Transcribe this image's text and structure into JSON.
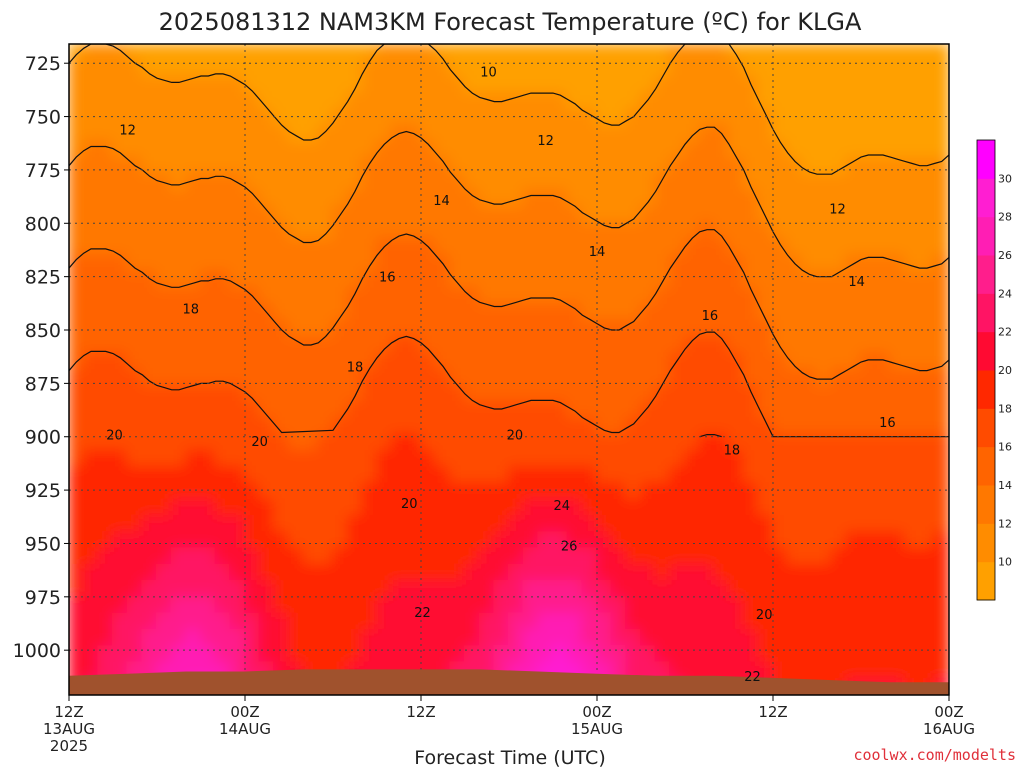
{
  "chart_data": {
    "type": "heatmap",
    "title": "2025081312 NAM3KM Forecast Temperature (ºC) for KLGA",
    "xlabel": "Forecast Time (UTC)",
    "ylabel": "",
    "x_ticks": [
      {
        "hour": 0,
        "line1": "12Z",
        "line2": "13AUG",
        "line3": "2025"
      },
      {
        "hour": 12,
        "line1": "00Z",
        "line2": "14AUG",
        "line3": ""
      },
      {
        "hour": 24,
        "line1": "12Z",
        "line2": "",
        "line3": ""
      },
      {
        "hour": 36,
        "line1": "00Z",
        "line2": "15AUG",
        "line3": ""
      },
      {
        "hour": 48,
        "line1": "12Z",
        "line2": "",
        "line3": ""
      },
      {
        "hour": 60,
        "line1": "00Z",
        "line2": "16AUG",
        "line3": ""
      }
    ],
    "xlim": [
      0,
      60
    ],
    "y_ticks": [
      725,
      750,
      775,
      800,
      825,
      850,
      875,
      900,
      925,
      950,
      975,
      1000
    ],
    "ylim": [
      716,
      1021
    ],
    "y_inverted": true,
    "grid": true,
    "colorbar": {
      "placement": "right",
      "levels": [
        10,
        12,
        14,
        16,
        18,
        20,
        22,
        24,
        26,
        28,
        30
      ],
      "colors": [
        "#ffa000",
        "#ff8c00",
        "#ff7800",
        "#ff6400",
        "#ff4b00",
        "#ff2800",
        "#ff0a32",
        "#ff1464",
        "#ff1e8c",
        "#ff1eb4",
        "#ff1ed2",
        "#ff00ff"
      ]
    },
    "contour_labels": [
      {
        "hour": 28.6,
        "pressure": 729,
        "value": "10"
      },
      {
        "hour": 4,
        "pressure": 756,
        "value": "12"
      },
      {
        "hour": 32.5,
        "pressure": 761,
        "value": "12"
      },
      {
        "hour": 52.4,
        "pressure": 793,
        "value": "12"
      },
      {
        "hour": 25.4,
        "pressure": 789,
        "value": "14"
      },
      {
        "hour": 36,
        "pressure": 813,
        "value": "14"
      },
      {
        "hour": 53.7,
        "pressure": 827,
        "value": "14"
      },
      {
        "hour": 8.3,
        "pressure": 840,
        "value": "18"
      },
      {
        "hour": 21.7,
        "pressure": 825,
        "value": "16"
      },
      {
        "hour": 43.7,
        "pressure": 843,
        "value": "16"
      },
      {
        "hour": 19.5,
        "pressure": 867,
        "value": "18"
      },
      {
        "hour": 45.2,
        "pressure": 906,
        "value": "18"
      },
      {
        "hour": 55.8,
        "pressure": 893,
        "value": "16"
      },
      {
        "hour": 3.1,
        "pressure": 899,
        "value": "20"
      },
      {
        "hour": 13,
        "pressure": 902,
        "value": "20"
      },
      {
        "hour": 30.4,
        "pressure": 899,
        "value": "20"
      },
      {
        "hour": 23.2,
        "pressure": 931,
        "value": "20"
      },
      {
        "hour": 33.6,
        "pressure": 932,
        "value": "24"
      },
      {
        "hour": 34.1,
        "pressure": 951,
        "value": "26"
      },
      {
        "hour": 24.1,
        "pressure": 982,
        "value": "22"
      },
      {
        "hour": 47.4,
        "pressure": 983,
        "value": "20"
      },
      {
        "hour": 46.6,
        "pressure": 1012,
        "value": "22"
      }
    ],
    "ground_pressure": [
      1012,
      1011,
      1010,
      1010,
      1009,
      1009,
      1009,
      1009,
      1010,
      1011,
      1012,
      1012,
      1013,
      1014,
      1015,
      1015
    ]
  },
  "credit": "coolwx.com/modelts"
}
